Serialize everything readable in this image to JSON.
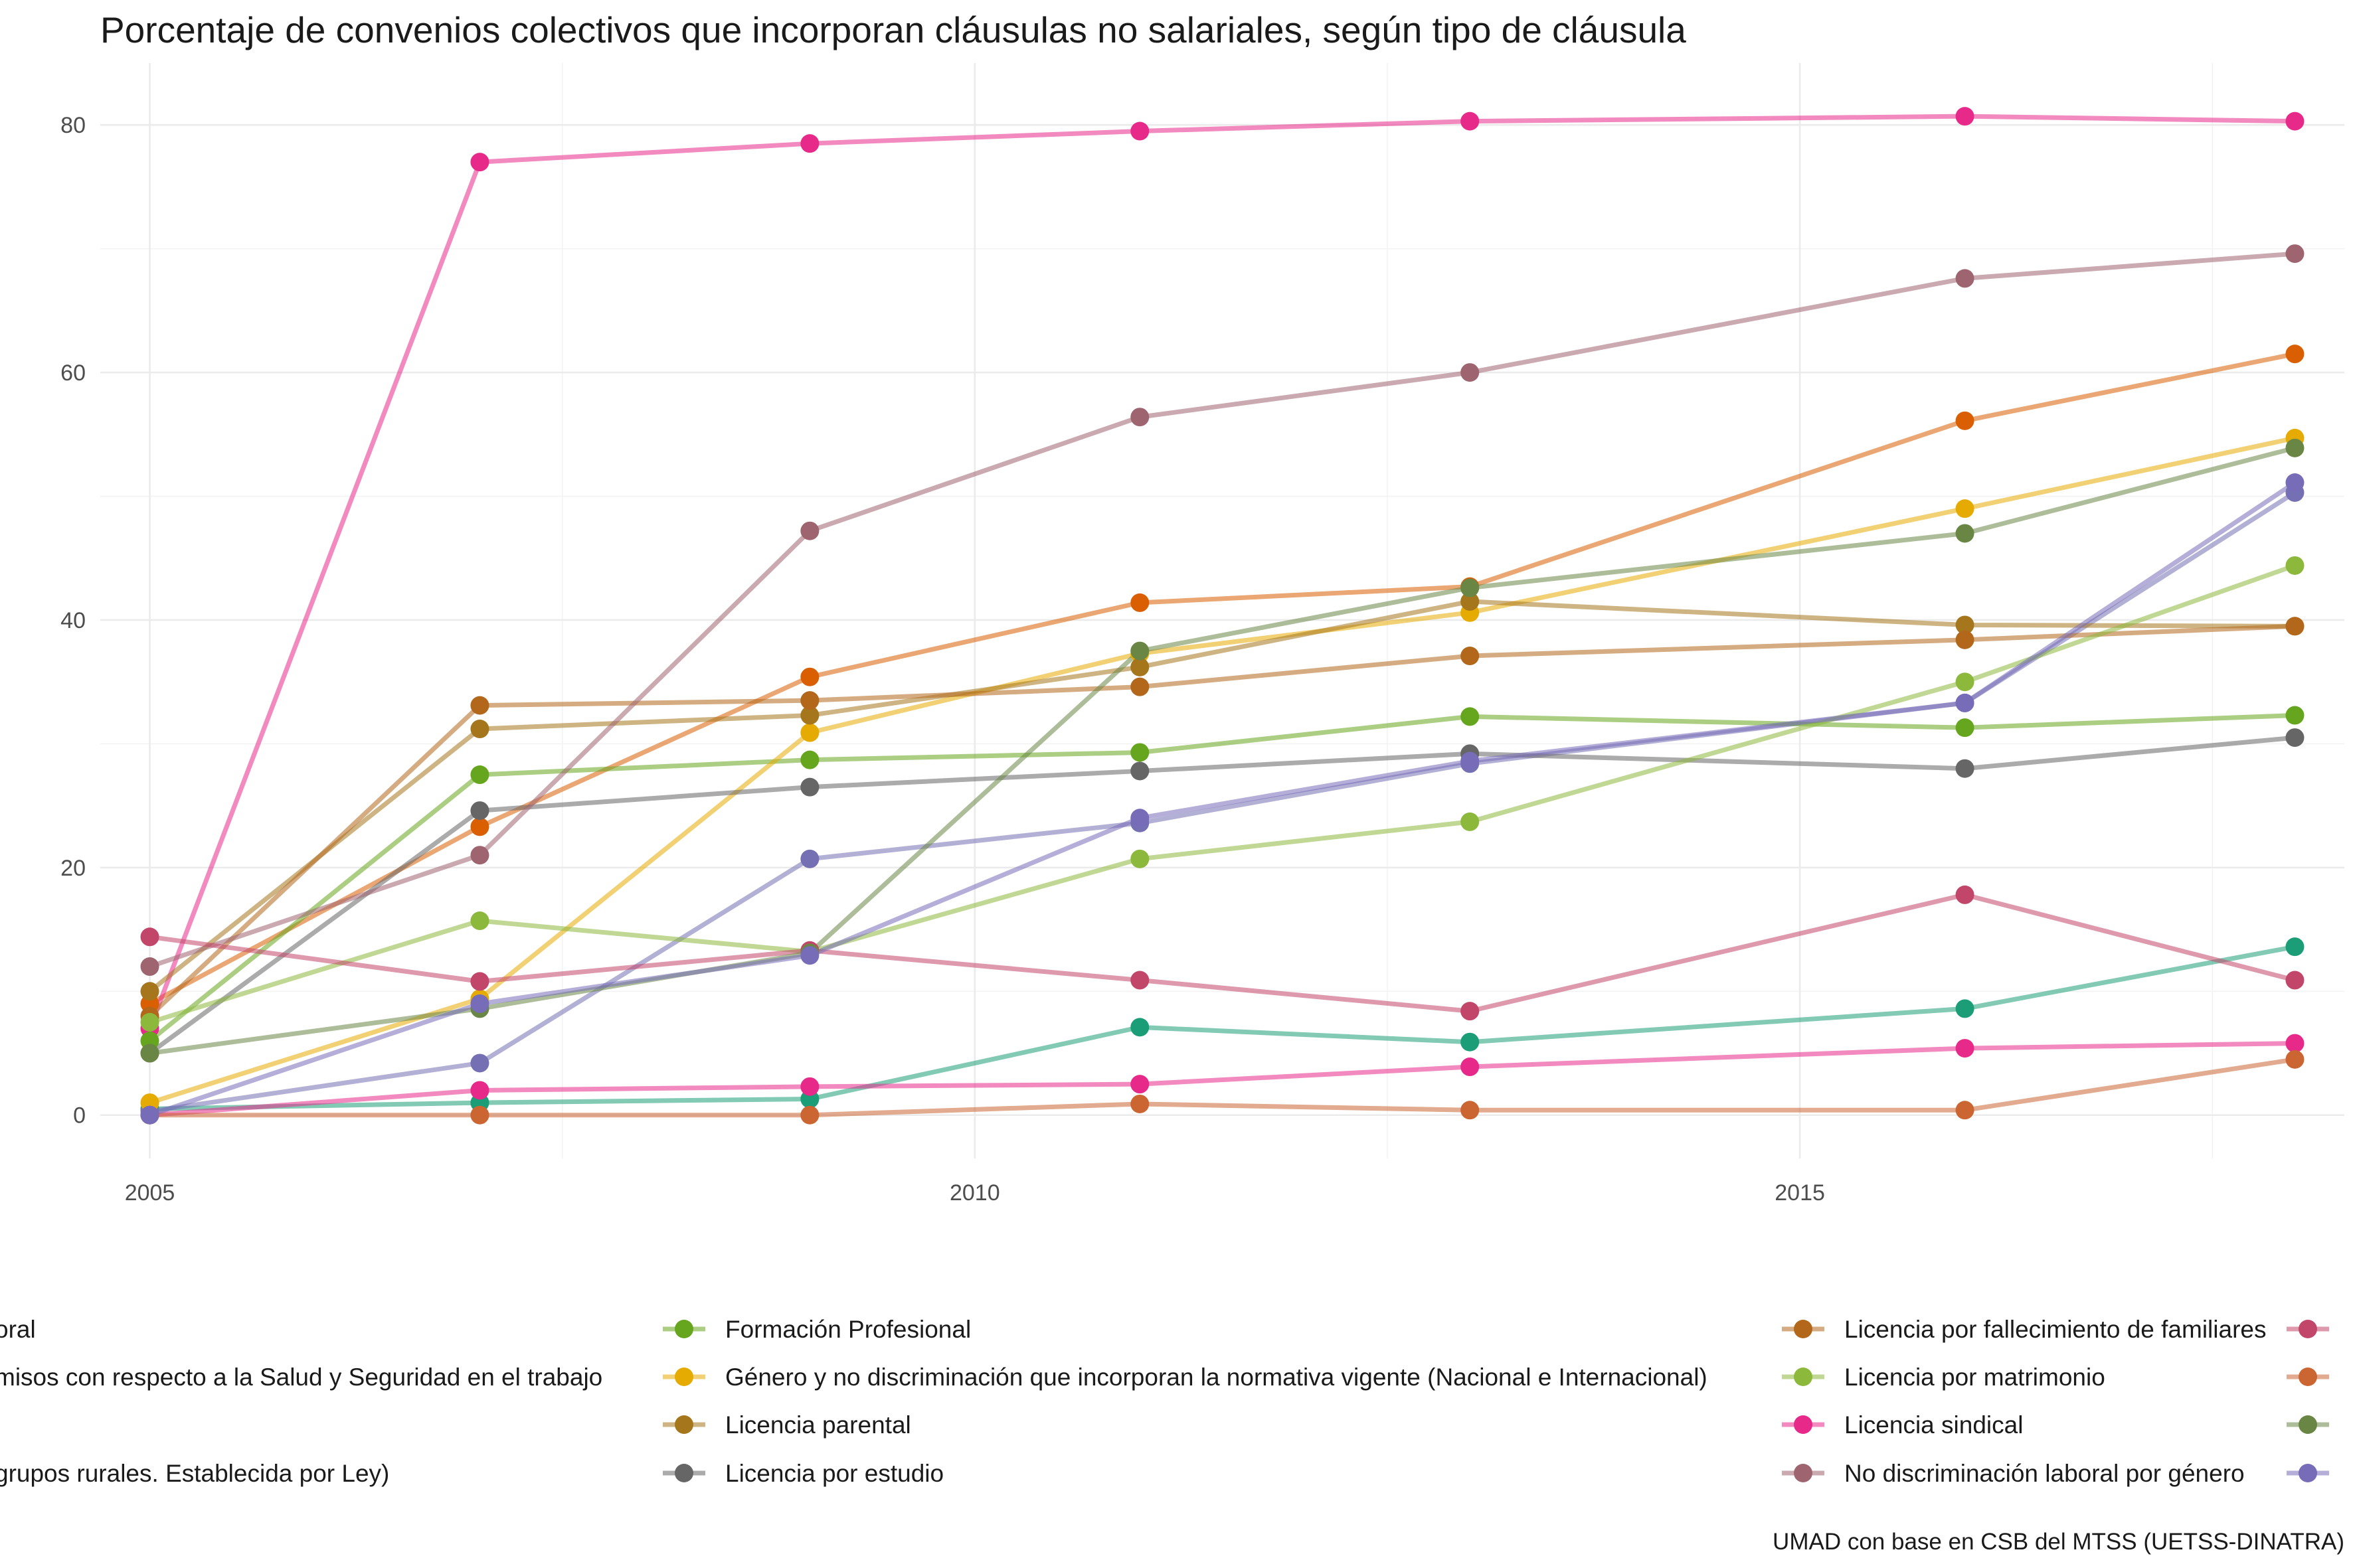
{
  "chart_data": {
    "type": "line",
    "title": "Porcentaje de convenios colectivos que incorporan cláusulas no salariales, según tipo de cláusula",
    "caption": "UMAD con base en CSB del MTSS (UETSS-DINATRA)",
    "xlabel": "",
    "ylabel": "",
    "xlim": [
      2004.7,
      2018.3
    ],
    "ylim": [
      -3.5,
      85
    ],
    "x_ticks": [
      2005,
      2010,
      2015
    ],
    "y_ticks": [
      0,
      20,
      40,
      60,
      80
    ],
    "x": [
      2005,
      2007,
      2009,
      2011,
      2013,
      2016,
      2018
    ],
    "legend_position": "bottom",
    "legend_columns": [
      [
        {
          "label": "oral",
          "color": "#1B9E77",
          "series": 0
        },
        {
          "label": "misos con respecto a la Salud y Seguridad en el trabajo",
          "color": "#D95F02",
          "series": 1
        },
        {
          "label": "",
          "color": "#7570B3",
          "series": 2
        },
        {
          "label": "grupos rurales. Establecida por Ley)",
          "color": "#E7298A",
          "series": 3
        }
      ],
      [
        {
          "label": "Formación Profesional",
          "color": "#66A61E",
          "series": 4
        },
        {
          "label": "Género y no discriminación que incorporan la normativa vigente (Nacional e Internacional)",
          "color": "#E6AB02",
          "series": 5
        },
        {
          "label": "Licencia parental",
          "color": "#A6761D",
          "series": 6
        },
        {
          "label": "Licencia por estudio",
          "color": "#666666",
          "series": 7
        }
      ],
      [
        {
          "label": "Licencia por fallecimiento de familiares",
          "color": "#B2671B",
          "series": 8
        },
        {
          "label": "Licencia por matrimonio",
          "color": "#8CB83B",
          "series": 9
        },
        {
          "label": "Licencia sindical",
          "color": "#E7298A",
          "series": 10
        },
        {
          "label": "No discriminación laboral por género",
          "color": "#9E6570",
          "series": 11
        }
      ],
      [
        {
          "label": "",
          "color": "#C2466A",
          "series": 12
        },
        {
          "label": "",
          "color": "#CB6531",
          "series": 13
        },
        {
          "label": "",
          "color": "#6A8645",
          "series": 14
        },
        {
          "label": "",
          "color": "#766CB8",
          "series": 15
        }
      ]
    ],
    "series": [
      {
        "name": "oral",
        "color": "#1B9E77",
        "values": [
          0.5,
          1.0,
          1.3,
          7.1,
          5.9,
          8.6,
          13.6
        ]
      },
      {
        "name": "misos con respecto a la Salud y Seguridad en el trabajo",
        "color": "#D95F02",
        "values": [
          9.0,
          23.3,
          35.4,
          41.4,
          42.7,
          56.1,
          61.5
        ]
      },
      {
        "name": "",
        "color": "#7570B3",
        "values": [
          0.3,
          4.2,
          20.7,
          23.6,
          28.4,
          33.3,
          50.3
        ]
      },
      {
        "name": "grupos rurales. Establecida por Ley)",
        "color": "#E7298A",
        "values": [
          7.0,
          77.0,
          78.5,
          79.5,
          80.3,
          80.7,
          80.3
        ]
      },
      {
        "name": "Formación Profesional",
        "color": "#66A61E",
        "values": [
          6.0,
          27.5,
          28.7,
          29.3,
          32.2,
          31.3,
          32.3
        ]
      },
      {
        "name": "Género y no discriminación que incorporan la normativa vigente (Nacional e Internacional)",
        "color": "#E6AB02",
        "values": [
          1.0,
          9.4,
          30.9,
          37.3,
          40.6,
          49.0,
          54.7
        ]
      },
      {
        "name": "Licencia parental",
        "color": "#A6761D",
        "values": [
          10.0,
          31.2,
          32.3,
          36.2,
          41.5,
          39.6,
          39.5
        ]
      },
      {
        "name": "Licencia por estudio",
        "color": "#666666",
        "values": [
          5.0,
          24.6,
          26.5,
          27.8,
          29.2,
          28.0,
          30.5
        ]
      },
      {
        "name": "Licencia por fallecimiento de familiares",
        "color": "#B2671B",
        "values": [
          8.0,
          33.1,
          33.5,
          34.6,
          37.1,
          38.4,
          39.5
        ]
      },
      {
        "name": "Licencia por matrimonio",
        "color": "#8CB83B",
        "values": [
          7.5,
          15.7,
          13.2,
          20.7,
          23.7,
          35.0,
          44.4
        ]
      },
      {
        "name": "Licencia sindical",
        "color": "#E7298A",
        "values": [
          0.0,
          2.0,
          2.3,
          2.5,
          3.9,
          5.4,
          5.8
        ]
      },
      {
        "name": "No discriminación laboral por género",
        "color": "#9E6570",
        "values": [
          12.0,
          21.0,
          47.2,
          56.4,
          60.0,
          67.6,
          69.6
        ]
      },
      {
        "name": "",
        "color": "#C2466A",
        "values": [
          14.4,
          10.8,
          13.3,
          10.9,
          8.4,
          17.8,
          10.9
        ]
      },
      {
        "name": "",
        "color": "#CB6531",
        "values": [
          0.0,
          0.0,
          0.0,
          0.9,
          0.4,
          0.4,
          4.5
        ]
      },
      {
        "name": "",
        "color": "#6A8645",
        "values": [
          5.0,
          8.6,
          13.1,
          37.5,
          42.6,
          47.0,
          53.9
        ]
      },
      {
        "name": "",
        "color": "#766CB8",
        "values": [
          0.0,
          9.0,
          12.9,
          24.0,
          28.6,
          33.3,
          51.1
        ]
      }
    ]
  }
}
